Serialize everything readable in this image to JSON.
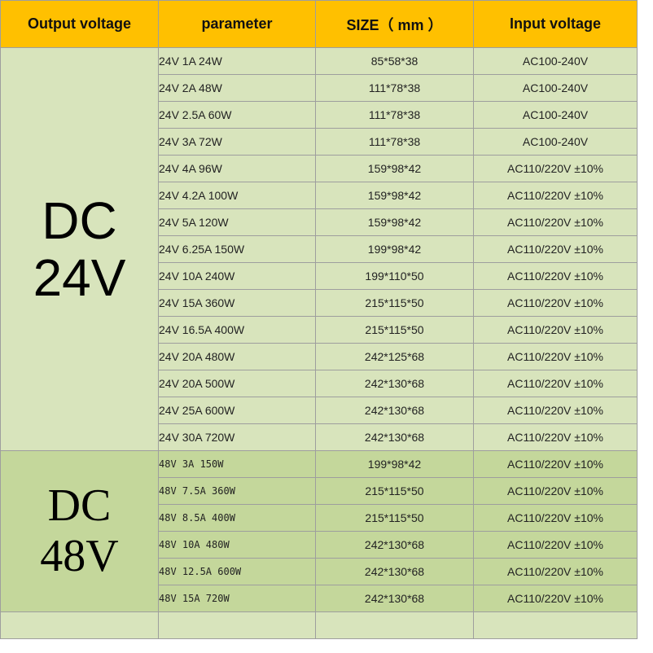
{
  "header": {
    "output_voltage": "Output voltage",
    "parameter": "parameter",
    "size": "SIZE（ mm ）",
    "input_voltage": "Input voltage"
  },
  "groups": {
    "dc24": {
      "line1": "DC",
      "line2": "24V"
    },
    "dc48": {
      "line1": "DC",
      "line2": "48V"
    }
  },
  "rows24": [
    {
      "parameter": "24V 1A 24W",
      "size": "85*58*38",
      "input": "AC100-240V"
    },
    {
      "parameter": "24V 2A 48W",
      "size": "111*78*38",
      "input": "AC100-240V"
    },
    {
      "parameter": "24V 2.5A 60W",
      "size": "111*78*38",
      "input": "AC100-240V"
    },
    {
      "parameter": "24V 3A 72W",
      "size": "111*78*38",
      "input": "AC100-240V"
    },
    {
      "parameter": "24V 4A 96W",
      "size": "159*98*42",
      "input": "AC110/220V ±10%"
    },
    {
      "parameter": "24V 4.2A 100W",
      "size": "159*98*42",
      "input": "AC110/220V ±10%"
    },
    {
      "parameter": "24V 5A 120W",
      "size": "159*98*42",
      "input": "AC110/220V ±10%"
    },
    {
      "parameter": "24V 6.25A 150W",
      "size": "199*98*42",
      "input": "AC110/220V ±10%"
    },
    {
      "parameter": "24V 10A 240W",
      "size": "199*110*50",
      "input": "AC110/220V ±10%"
    },
    {
      "parameter": "24V 15A 360W",
      "size": "215*115*50",
      "input": "AC110/220V ±10%"
    },
    {
      "parameter": "24V 16.5A 400W",
      "size": "215*115*50",
      "input": "AC110/220V ±10%"
    },
    {
      "parameter": "24V 20A 480W",
      "size": "242*125*68",
      "input": "AC110/220V ±10%"
    },
    {
      "parameter": "24V 20A 500W",
      "size": "242*130*68",
      "input": "AC110/220V ±10%"
    },
    {
      "parameter": "24V 25A 600W",
      "size": "242*130*68",
      "input": "AC110/220V ±10%"
    },
    {
      "parameter": "24V 30A 720W",
      "size": "242*130*68",
      "input": "AC110/220V ±10%"
    }
  ],
  "rows48": [
    {
      "parameter": "48V 3A 150W",
      "size": "199*98*42",
      "input": "AC110/220V ±10%"
    },
    {
      "parameter": "48V 7.5A 360W",
      "size": "215*115*50",
      "input": "AC110/220V ±10%"
    },
    {
      "parameter": "48V 8.5A 400W",
      "size": "215*115*50",
      "input": "AC110/220V ±10%"
    },
    {
      "parameter": "48V 10A 480W",
      "size": "242*130*68",
      "input": "AC110/220V ±10%"
    },
    {
      "parameter": "48V 12.5A 600W",
      "size": "242*130*68",
      "input": "AC110/220V ±10%"
    },
    {
      "parameter": "48V 15A 720W",
      "size": "242*130*68",
      "input": "AC110/220V ±10%"
    }
  ]
}
